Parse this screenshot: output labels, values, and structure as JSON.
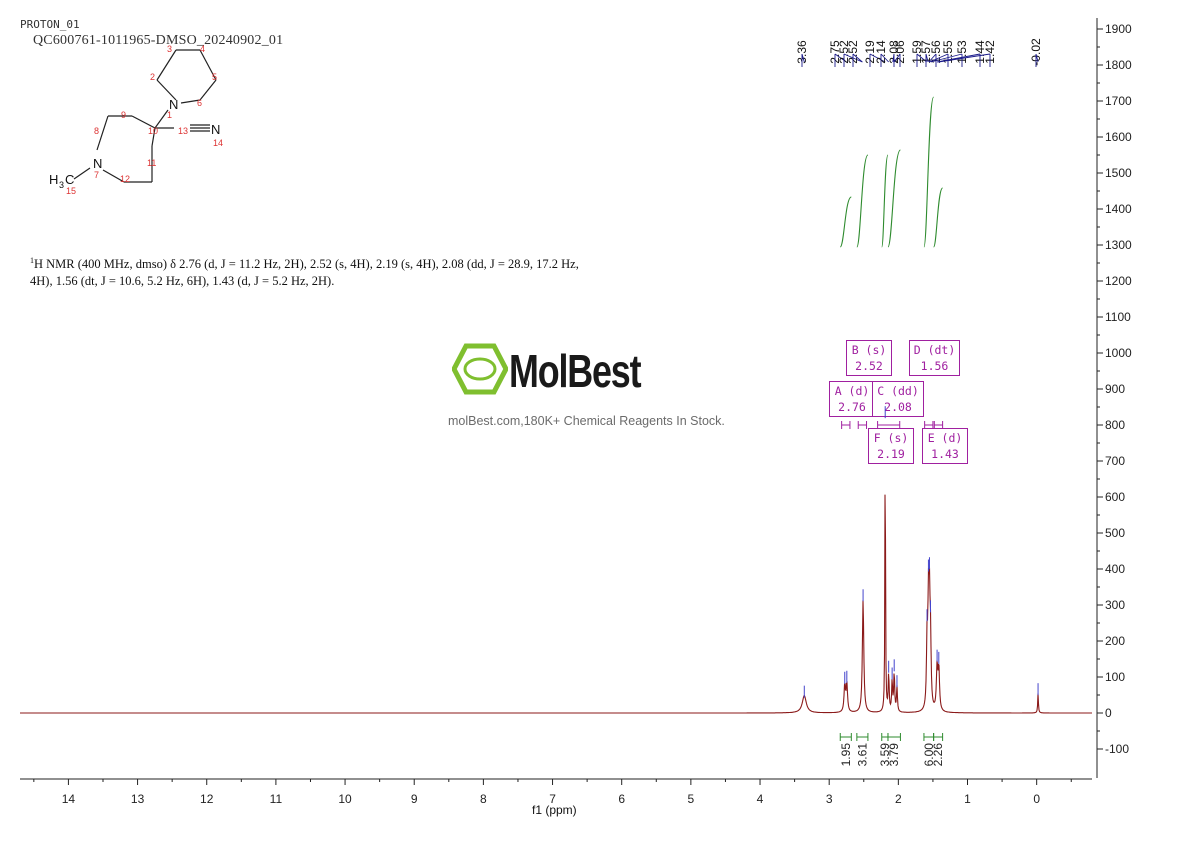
{
  "header": {
    "experiment": "PROTON_01",
    "sample": "QC600761-1011965-DMSO_20240902_01"
  },
  "watermark": {
    "brand": "MolBest",
    "tagline": "molBest.com,180K+ Chemical Reagents In Stock.",
    "color": "#7fbf2f"
  },
  "structure": {
    "atoms": [
      "1",
      "2",
      "3",
      "4",
      "5",
      "6",
      "7",
      "8",
      "9",
      "10",
      "11",
      "12",
      "13",
      "14",
      "15"
    ],
    "n_label": "N",
    "methyl_h": "H",
    "methyl_sub": "3",
    "methyl_c": "C"
  },
  "nmr_description": {
    "sup": "1",
    "text": "H NMR (400 MHz, dmso) δ 2.76 (d, J = 11.2 Hz, 2H), 2.52 (s, 4H), 2.19 (s, 4H), 2.08 (dd, J = 28.9, 17.2 Hz, 4H), 1.56 (dt, J = 10.6, 5.2 Hz, 6H), 1.43 (d, J = 5.2 Hz, 2H)."
  },
  "multiplets": [
    {
      "label": "A (d)",
      "shift": "2.76"
    },
    {
      "label": "B (s)",
      "shift": "2.52"
    },
    {
      "label": "C (dd)",
      "shift": "2.08"
    },
    {
      "label": "D (dt)",
      "shift": "1.56"
    },
    {
      "label": "E (d)",
      "shift": "1.43"
    },
    {
      "label": "F (s)",
      "shift": "2.19"
    }
  ],
  "peak_labels": [
    "3.36",
    "2.75",
    "2.52",
    "2.52",
    "2.19",
    "2.14",
    "2.08",
    "2.06",
    "1.59",
    "1.57",
    "1.56",
    "1.55",
    "1.53",
    "1.44",
    "1.42",
    "-0.02"
  ],
  "colors": {
    "spectrum": "#8b1a1a",
    "integral": "#2e8b2e",
    "peak_label": "#1a1a8b",
    "multiplet": "#a020a0"
  },
  "chart_data": {
    "type": "line",
    "title": "",
    "xlabel": "f1 (ppm)",
    "ylabel": "",
    "xlim": [
      14.7,
      -0.8
    ],
    "ylim": [
      -170,
      1930
    ],
    "x_reversed": true,
    "x_ticks": [
      14,
      13,
      12,
      11,
      10,
      9,
      8,
      7,
      6,
      5,
      4,
      3,
      2,
      1,
      0
    ],
    "y_ticks": [
      -100,
      0,
      100,
      200,
      300,
      400,
      500,
      600,
      700,
      800,
      900,
      1000,
      1100,
      1200,
      1300,
      1400,
      1500,
      1600,
      1700,
      1800,
      1900
    ],
    "grid": false,
    "series": [
      {
        "peaks": [
          {
            "ppm": 3.36,
            "height": 48,
            "width": 0.035
          },
          {
            "ppm": 2.775,
            "height": 75,
            "width": 0.012
          },
          {
            "ppm": 2.745,
            "height": 78,
            "width": 0.012
          },
          {
            "ppm": 2.51,
            "height": 315,
            "width": 0.012
          },
          {
            "ppm": 2.19,
            "height": 820,
            "width": 0.005
          },
          {
            "ppm": 2.14,
            "height": 105,
            "width": 0.008
          },
          {
            "ppm": 2.09,
            "height": 85,
            "width": 0.008
          },
          {
            "ppm": 2.06,
            "height": 110,
            "width": 0.008
          },
          {
            "ppm": 2.02,
            "height": 70,
            "width": 0.008
          },
          {
            "ppm": 1.585,
            "height": 180,
            "width": 0.01
          },
          {
            "ppm": 1.565,
            "height": 265,
            "width": 0.01
          },
          {
            "ppm": 1.55,
            "height": 255,
            "width": 0.01
          },
          {
            "ppm": 1.535,
            "height": 170,
            "width": 0.01
          },
          {
            "ppm": 1.44,
            "height": 120,
            "width": 0.012
          },
          {
            "ppm": 1.415,
            "height": 115,
            "width": 0.012
          },
          {
            "ppm": -0.02,
            "height": 55,
            "width": 0.006
          }
        ]
      }
    ],
    "integrals": [
      {
        "from": 2.84,
        "to": 2.68,
        "value": "1.95"
      },
      {
        "from": 2.6,
        "to": 2.44,
        "value": "3.61"
      },
      {
        "from": 2.24,
        "to": 2.15,
        "value": "3.59"
      },
      {
        "from": 2.15,
        "to": 1.97,
        "value": "3.79"
      },
      {
        "from": 1.63,
        "to": 1.49,
        "value": "6.00"
      },
      {
        "from": 1.49,
        "to": 1.36,
        "value": "2.26"
      }
    ]
  }
}
